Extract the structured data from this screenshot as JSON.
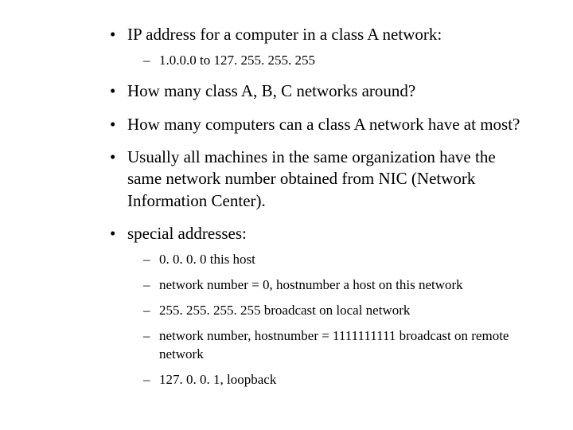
{
  "bullets": [
    {
      "text": "IP address for a computer in a class A network:",
      "subs": [
        "1.0.0.0 to 127. 255. 255. 255"
      ]
    },
    {
      "text": "How many class A, B, C networks around?",
      "subs": []
    },
    {
      "text": "How many computers can a class A network have at most?",
      "subs": []
    },
    {
      "text": "Usually all machines in the same organization have the same network number obtained  from NIC (Network Information Center).",
      "subs": []
    },
    {
      "text": "special addresses:",
      "subs": [
        "0. 0. 0. 0 this host",
        "network number = 0, hostnumber a host on this network",
        " 255. 255. 255. 255 broadcast on local network",
        "network number, hostnumber = 1111111111 broadcast on remote network",
        "127. 0. 0. 1, loopback"
      ]
    }
  ],
  "colors": {
    "background": "#ffffff",
    "text": "#000000"
  },
  "typography": {
    "bullet_fontsize": 21,
    "sub_fontsize": 17,
    "font_family": "Times New Roman"
  }
}
